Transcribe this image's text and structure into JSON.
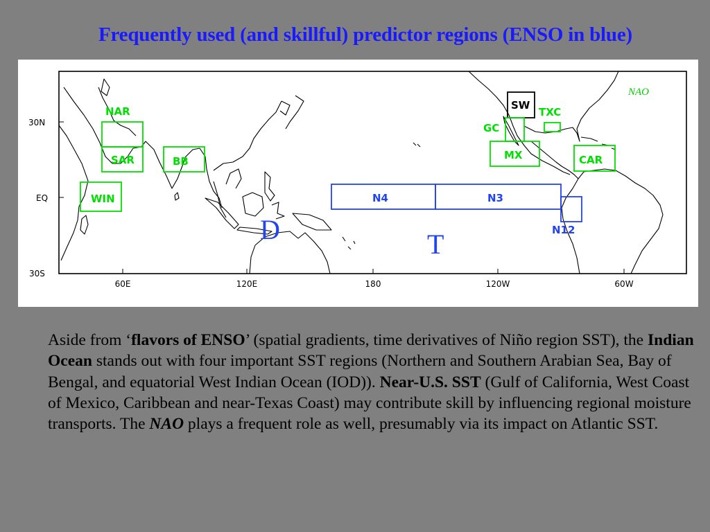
{
  "slide": {
    "title": "Frequently used (and skillful) predictor regions (ENSO in blue)"
  },
  "map": {
    "axes": {
      "y_ticks": [
        "30N",
        "EQ",
        "30S"
      ],
      "x_ticks": [
        "60E",
        "120E",
        "180",
        "120W",
        "60W"
      ]
    },
    "annotations": {
      "nao": "NAO",
      "d": "D",
      "t": "T"
    },
    "regions": [
      {
        "id": "NAR",
        "label": "NAR",
        "kind": "predictor",
        "color": "#00e000"
      },
      {
        "id": "SAR",
        "label": "SAR",
        "kind": "predictor",
        "color": "#00e000"
      },
      {
        "id": "BB",
        "label": "BB",
        "kind": "predictor",
        "color": "#00e000"
      },
      {
        "id": "WIN",
        "label": "WIN",
        "kind": "predictor",
        "color": "#00e000"
      },
      {
        "id": "SW",
        "label": "SW",
        "kind": "predictor",
        "color": "#000000"
      },
      {
        "id": "TXC",
        "label": "TXC",
        "kind": "predictor",
        "color": "#00e000"
      },
      {
        "id": "GC",
        "label": "GC",
        "kind": "predictor",
        "color": "#00e000"
      },
      {
        "id": "MX",
        "label": "MX",
        "kind": "predictor",
        "color": "#00e000"
      },
      {
        "id": "CAR",
        "label": "CAR",
        "kind": "predictor",
        "color": "#00e000"
      },
      {
        "id": "N4",
        "label": "N4",
        "kind": "enso",
        "color": "#2244ee"
      },
      {
        "id": "N3",
        "label": "N3",
        "kind": "enso",
        "color": "#2244ee"
      },
      {
        "id": "N12",
        "label": "N12",
        "kind": "enso",
        "color": "#2244ee"
      }
    ]
  },
  "text": {
    "p1": "Aside from ‘",
    "b1": "flavors of ENSO",
    "p2": "’ (spatial gradients, time derivatives of Niño region SST), the ",
    "b2": "Indian Ocean",
    "p3": " stands out with four important SST regions (Northern and Southern Arabian Sea, Bay of Bengal, and equatorial West Indian Ocean (IOD)).  ",
    "b3": "Near-U.S. SST",
    "p4": " (Gulf of California, West Coast of Mexico, Caribbean and near-Texas Coast) may contribute skill by influencing regional moisture transports. The ",
    "bi1": "NAO",
    "p5": " plays a frequent role as well, presumably via its impact on Atlantic SST."
  }
}
